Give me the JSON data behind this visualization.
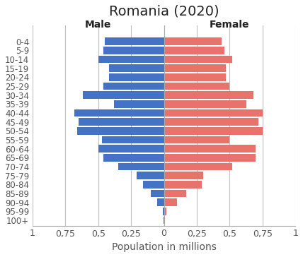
{
  "title": "Romania (2020)",
  "xlabel": "Population in millions",
  "male_label": "Male",
  "female_label": "Female",
  "age_groups": [
    "100+",
    "95-99",
    "90-94",
    "85-89",
    "80-84",
    "75-79",
    "70-74",
    "65-69",
    "60-64",
    "55-59",
    "50-54",
    "45-49",
    "40-44",
    "35-39",
    "30-34",
    "25-29",
    "20-24",
    "15-19",
    "10-14",
    "5-9",
    "0-4"
  ],
  "male_values": [
    0.002,
    0.01,
    0.05,
    0.1,
    0.16,
    0.21,
    0.35,
    0.46,
    0.5,
    0.47,
    0.66,
    0.65,
    0.68,
    0.38,
    0.62,
    0.46,
    0.42,
    0.42,
    0.5,
    0.46,
    0.45
  ],
  "female_values": [
    0.006,
    0.02,
    0.1,
    0.17,
    0.29,
    0.3,
    0.52,
    0.7,
    0.7,
    0.5,
    0.75,
    0.72,
    0.75,
    0.63,
    0.68,
    0.5,
    0.47,
    0.47,
    0.52,
    0.46,
    0.44
  ],
  "male_color": "#4472C4",
  "female_color": "#E8736C",
  "background_color": "#FFFFFF",
  "xlim": 1.0,
  "tick_positions": [
    -1,
    -0.75,
    -0.5,
    -0.25,
    0,
    0.25,
    0.5,
    0.75,
    1
  ],
  "tick_labels": [
    "1",
    "0,75",
    "0,5",
    "0,25",
    "0",
    "0,25",
    "0,5",
    "0,75",
    "1"
  ],
  "bar_height": 0.85,
  "grid_color": "#C0C0C0",
  "title_fontsize": 14,
  "label_fontsize": 10,
  "tick_fontsize": 9,
  "age_fontsize": 8.5
}
